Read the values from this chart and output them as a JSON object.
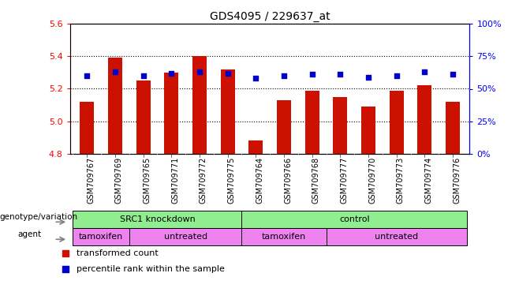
{
  "title": "GDS4095 / 229637_at",
  "samples": [
    "GSM709767",
    "GSM709769",
    "GSM709765",
    "GSM709771",
    "GSM709772",
    "GSM709775",
    "GSM709764",
    "GSM709766",
    "GSM709768",
    "GSM709777",
    "GSM709770",
    "GSM709773",
    "GSM709774",
    "GSM709776"
  ],
  "bar_values": [
    5.12,
    5.39,
    5.25,
    5.3,
    5.4,
    5.32,
    4.88,
    5.13,
    5.19,
    5.15,
    5.09,
    5.19,
    5.22,
    5.12
  ],
  "percentile_values": [
    60,
    63,
    60,
    62,
    63,
    62,
    58,
    60,
    61,
    61,
    59,
    60,
    63,
    61
  ],
  "ylim_left": [
    4.8,
    5.6
  ],
  "ylim_right": [
    0,
    100
  ],
  "yticks_left": [
    4.8,
    5.0,
    5.2,
    5.4,
    5.6
  ],
  "yticks_right": [
    0,
    25,
    50,
    75,
    100
  ],
  "bar_color": "#cc1100",
  "dot_color": "#0000cc",
  "bar_bottom": 4.8,
  "genotype_spans": [
    {
      "label": "SRC1 knockdown",
      "start": 0,
      "end": 6
    },
    {
      "label": "control",
      "start": 6,
      "end": 14
    }
  ],
  "agent_spans": [
    {
      "label": "tamoxifen",
      "start": 0,
      "end": 2
    },
    {
      "label": "untreated",
      "start": 2,
      "end": 6
    },
    {
      "label": "tamoxifen",
      "start": 6,
      "end": 9
    },
    {
      "label": "untreated",
      "start": 9,
      "end": 14
    }
  ],
  "genotype_color": "#90ee90",
  "agent_color": "#ee82ee",
  "legend_items": [
    {
      "label": "transformed count",
      "color": "#cc1100"
    },
    {
      "label": "percentile rank within the sample",
      "color": "#0000cc"
    }
  ],
  "background_color": "#ffffff"
}
